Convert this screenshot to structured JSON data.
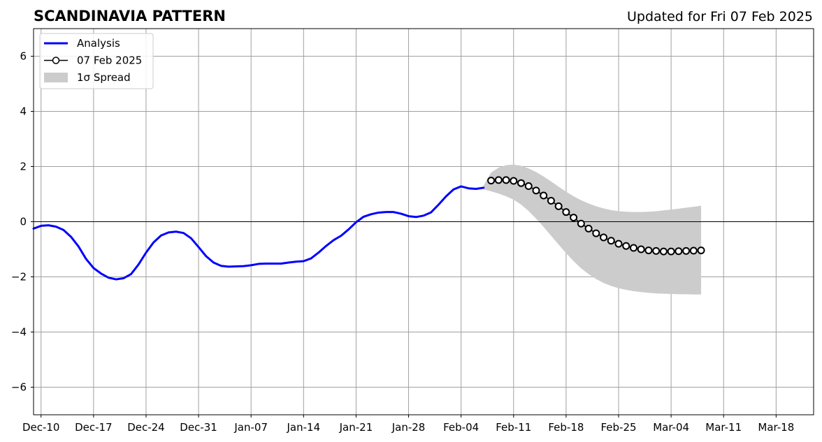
{
  "chart_data": {
    "type": "line",
    "title": "SCANDINAVIA PATTERN",
    "subtitle": "Updated for Fri 07 Feb 2025",
    "xlabel": "",
    "ylabel": "",
    "x_axis_kind": "date",
    "xlim": [
      "2024-12-09",
      "2025-03-23"
    ],
    "ylim": [
      -7,
      7
    ],
    "x_ticks": [
      {
        "date": "2024-12-10",
        "label": "Dec-10"
      },
      {
        "date": "2024-12-17",
        "label": "Dec-17"
      },
      {
        "date": "2024-12-24",
        "label": "Dec-24"
      },
      {
        "date": "2024-12-31",
        "label": "Dec-31"
      },
      {
        "date": "2025-01-07",
        "label": "Jan-07"
      },
      {
        "date": "2025-01-14",
        "label": "Jan-14"
      },
      {
        "date": "2025-01-21",
        "label": "Jan-21"
      },
      {
        "date": "2025-01-28",
        "label": "Jan-28"
      },
      {
        "date": "2025-02-04",
        "label": "Feb-04"
      },
      {
        "date": "2025-02-11",
        "label": "Feb-11"
      },
      {
        "date": "2025-02-18",
        "label": "Feb-18"
      },
      {
        "date": "2025-02-25",
        "label": "Feb-25"
      },
      {
        "date": "2025-03-04",
        "label": "Mar-04"
      },
      {
        "date": "2025-03-11",
        "label": "Mar-11"
      },
      {
        "date": "2025-03-18",
        "label": "Mar-18"
      }
    ],
    "y_ticks": [
      {
        "value": 6,
        "label": "6"
      },
      {
        "value": 4,
        "label": "4"
      },
      {
        "value": 2,
        "label": "2"
      },
      {
        "value": 0,
        "label": "0"
      },
      {
        "value": -2,
        "label": "−2"
      },
      {
        "value": -4,
        "label": "−4"
      },
      {
        "value": -6,
        "label": "−6"
      }
    ],
    "grid": true,
    "zero_line": true,
    "legend_position": "top-left",
    "series": [
      {
        "name": "Analysis",
        "kind": "line",
        "color": "#0000ff",
        "points": [
          [
            "2024-12-09",
            -0.25
          ],
          [
            "2024-12-10",
            -0.15
          ],
          [
            "2024-12-11",
            -0.13
          ],
          [
            "2024-12-12",
            -0.18
          ],
          [
            "2024-12-13",
            -0.3
          ],
          [
            "2024-12-14",
            -0.55
          ],
          [
            "2024-12-15",
            -0.9
          ],
          [
            "2024-12-16",
            -1.35
          ],
          [
            "2024-12-17",
            -1.68
          ],
          [
            "2024-12-18",
            -1.88
          ],
          [
            "2024-12-19",
            -2.03
          ],
          [
            "2024-12-20",
            -2.09
          ],
          [
            "2024-12-21",
            -2.05
          ],
          [
            "2024-12-22",
            -1.9
          ],
          [
            "2024-12-23",
            -1.55
          ],
          [
            "2024-12-24",
            -1.12
          ],
          [
            "2024-12-25",
            -0.75
          ],
          [
            "2024-12-26",
            -0.5
          ],
          [
            "2024-12-27",
            -0.39
          ],
          [
            "2024-12-28",
            -0.36
          ],
          [
            "2024-12-29",
            -0.41
          ],
          [
            "2024-12-30",
            -0.6
          ],
          [
            "2024-12-31",
            -0.92
          ],
          [
            "2025-01-01",
            -1.25
          ],
          [
            "2025-01-02",
            -1.48
          ],
          [
            "2025-01-03",
            -1.6
          ],
          [
            "2025-01-04",
            -1.63
          ],
          [
            "2025-01-05",
            -1.62
          ],
          [
            "2025-01-06",
            -1.61
          ],
          [
            "2025-01-07",
            -1.58
          ],
          [
            "2025-01-08",
            -1.53
          ],
          [
            "2025-01-09",
            -1.52
          ],
          [
            "2025-01-10",
            -1.52
          ],
          [
            "2025-01-11",
            -1.52
          ],
          [
            "2025-01-12",
            -1.48
          ],
          [
            "2025-01-13",
            -1.45
          ],
          [
            "2025-01-14",
            -1.43
          ],
          [
            "2025-01-15",
            -1.33
          ],
          [
            "2025-01-16",
            -1.12
          ],
          [
            "2025-01-17",
            -0.88
          ],
          [
            "2025-01-18",
            -0.67
          ],
          [
            "2025-01-19",
            -0.51
          ],
          [
            "2025-01-20",
            -0.28
          ],
          [
            "2025-01-21",
            -0.02
          ],
          [
            "2025-01-22",
            0.18
          ],
          [
            "2025-01-23",
            0.27
          ],
          [
            "2025-01-24",
            0.33
          ],
          [
            "2025-01-25",
            0.35
          ],
          [
            "2025-01-26",
            0.35
          ],
          [
            "2025-01-27",
            0.29
          ],
          [
            "2025-01-28",
            0.2
          ],
          [
            "2025-01-29",
            0.17
          ],
          [
            "2025-01-30",
            0.22
          ],
          [
            "2025-01-31",
            0.34
          ],
          [
            "2025-02-01",
            0.62
          ],
          [
            "2025-02-02",
            0.92
          ],
          [
            "2025-02-03",
            1.17
          ],
          [
            "2025-02-04",
            1.28
          ],
          [
            "2025-02-05",
            1.21
          ],
          [
            "2025-02-06",
            1.19
          ],
          [
            "2025-02-07",
            1.23
          ]
        ]
      },
      {
        "name": "07 Feb 2025",
        "kind": "line-markers",
        "color": "#000000",
        "points": [
          [
            "2025-02-08",
            1.49
          ],
          [
            "2025-02-09",
            1.51
          ],
          [
            "2025-02-10",
            1.51
          ],
          [
            "2025-02-11",
            1.48
          ],
          [
            "2025-02-12",
            1.4
          ],
          [
            "2025-02-13",
            1.29
          ],
          [
            "2025-02-14",
            1.13
          ],
          [
            "2025-02-15",
            0.95
          ],
          [
            "2025-02-16",
            0.76
          ],
          [
            "2025-02-17",
            0.56
          ],
          [
            "2025-02-18",
            0.35
          ],
          [
            "2025-02-19",
            0.15
          ],
          [
            "2025-02-20",
            -0.07
          ],
          [
            "2025-02-21",
            -0.25
          ],
          [
            "2025-02-22",
            -0.42
          ],
          [
            "2025-02-23",
            -0.57
          ],
          [
            "2025-02-24",
            -0.69
          ],
          [
            "2025-02-25",
            -0.8
          ],
          [
            "2025-02-26",
            -0.88
          ],
          [
            "2025-02-27",
            -0.95
          ],
          [
            "2025-02-28",
            -1.0
          ],
          [
            "2025-03-01",
            -1.04
          ],
          [
            "2025-03-02",
            -1.06
          ],
          [
            "2025-03-03",
            -1.08
          ],
          [
            "2025-03-04",
            -1.08
          ],
          [
            "2025-03-05",
            -1.07
          ],
          [
            "2025-03-06",
            -1.06
          ],
          [
            "2025-03-07",
            -1.05
          ],
          [
            "2025-03-08",
            -1.04
          ]
        ]
      }
    ],
    "spread": {
      "name": "1σ Spread",
      "color": "#cccccc",
      "upper": [
        [
          "2025-02-07",
          1.32
        ],
        [
          "2025-02-08",
          1.78
        ],
        [
          "2025-02-09",
          1.96
        ],
        [
          "2025-02-10",
          2.05
        ],
        [
          "2025-02-11",
          2.07
        ],
        [
          "2025-02-12",
          2.03
        ],
        [
          "2025-02-13",
          1.93
        ],
        [
          "2025-02-14",
          1.8
        ],
        [
          "2025-02-15",
          1.64
        ],
        [
          "2025-02-16",
          1.46
        ],
        [
          "2025-02-17",
          1.27
        ],
        [
          "2025-02-18",
          1.09
        ],
        [
          "2025-02-19",
          0.92
        ],
        [
          "2025-02-20",
          0.78
        ],
        [
          "2025-02-21",
          0.66
        ],
        [
          "2025-02-22",
          0.56
        ],
        [
          "2025-02-23",
          0.48
        ],
        [
          "2025-02-24",
          0.42
        ],
        [
          "2025-02-25",
          0.38
        ],
        [
          "2025-02-26",
          0.36
        ],
        [
          "2025-02-27",
          0.35
        ],
        [
          "2025-02-28",
          0.35
        ],
        [
          "2025-03-01",
          0.36
        ],
        [
          "2025-03-02",
          0.38
        ],
        [
          "2025-03-03",
          0.41
        ],
        [
          "2025-03-04",
          0.44
        ],
        [
          "2025-03-05",
          0.47
        ],
        [
          "2025-03-06",
          0.51
        ],
        [
          "2025-03-07",
          0.54
        ],
        [
          "2025-03-08",
          0.58
        ]
      ],
      "lower": [
        [
          "2025-02-07",
          1.17
        ],
        [
          "2025-02-08",
          1.1
        ],
        [
          "2025-02-09",
          1.02
        ],
        [
          "2025-02-10",
          0.92
        ],
        [
          "2025-02-11",
          0.8
        ],
        [
          "2025-02-12",
          0.62
        ],
        [
          "2025-02-13",
          0.39
        ],
        [
          "2025-02-14",
          0.11
        ],
        [
          "2025-02-15",
          -0.19
        ],
        [
          "2025-02-16",
          -0.51
        ],
        [
          "2025-02-17",
          -0.83
        ],
        [
          "2025-02-18",
          -1.14
        ],
        [
          "2025-02-19",
          -1.43
        ],
        [
          "2025-02-20",
          -1.69
        ],
        [
          "2025-02-21",
          -1.9
        ],
        [
          "2025-02-22",
          -2.08
        ],
        [
          "2025-02-23",
          -2.22
        ],
        [
          "2025-02-24",
          -2.33
        ],
        [
          "2025-02-25",
          -2.41
        ],
        [
          "2025-02-26",
          -2.47
        ],
        [
          "2025-02-27",
          -2.52
        ],
        [
          "2025-02-28",
          -2.55
        ],
        [
          "2025-03-01",
          -2.58
        ],
        [
          "2025-03-02",
          -2.6
        ],
        [
          "2025-03-03",
          -2.61
        ],
        [
          "2025-03-04",
          -2.62
        ],
        [
          "2025-03-05",
          -2.63
        ],
        [
          "2025-03-06",
          -2.63
        ],
        [
          "2025-03-07",
          -2.64
        ],
        [
          "2025-03-08",
          -2.64
        ]
      ]
    },
    "legend": [
      {
        "label": "Analysis",
        "kind": "line",
        "color": "#0000ff"
      },
      {
        "label": "07 Feb 2025",
        "kind": "line-marker",
        "color": "#000000"
      },
      {
        "label": "1σ Spread",
        "kind": "patch",
        "color": "#cccccc"
      }
    ]
  }
}
